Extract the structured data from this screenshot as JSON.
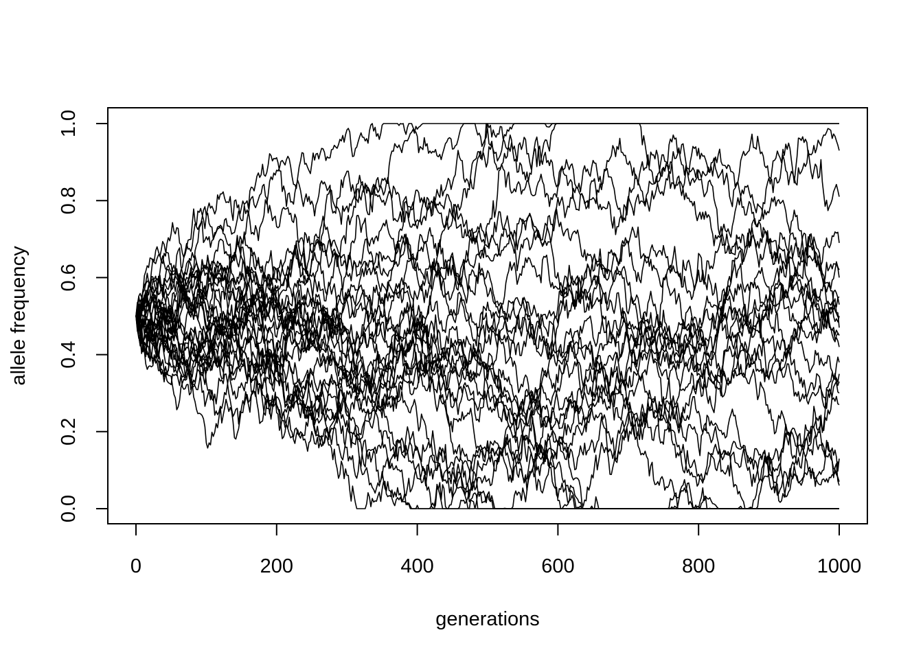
{
  "chart_data": {
    "type": "line",
    "title": "",
    "xlabel": "generations",
    "ylabel": "allele frequency",
    "xlim": [
      0,
      1000
    ],
    "ylim": [
      0,
      1
    ],
    "xticks": [
      "0",
      "200",
      "400",
      "600",
      "800",
      "1000"
    ],
    "yticks": [
      "0.0",
      "0.2",
      "0.4",
      "0.6",
      "0.8",
      "1.0"
    ],
    "grid": false,
    "legend": "none",
    "line_color": "#000000",
    "simulation": {
      "n_series": 30,
      "generations": 1000,
      "initial_frequency": 0.5,
      "endpoints": [
        1,
        1,
        0,
        0,
        0,
        0,
        0,
        0,
        0.93,
        0.81,
        0.69,
        0.62,
        0.6,
        0.55,
        0.53,
        0.5,
        0.47,
        0.45,
        0.42,
        0.38,
        0.35,
        0.33,
        0.3,
        0.27,
        0.13,
        0.12,
        0.07,
        0.06,
        0.5,
        0.45
      ],
      "fixation_generations": [
        410,
        600,
        490,
        530,
        650,
        780,
        830,
        840
      ]
    }
  }
}
